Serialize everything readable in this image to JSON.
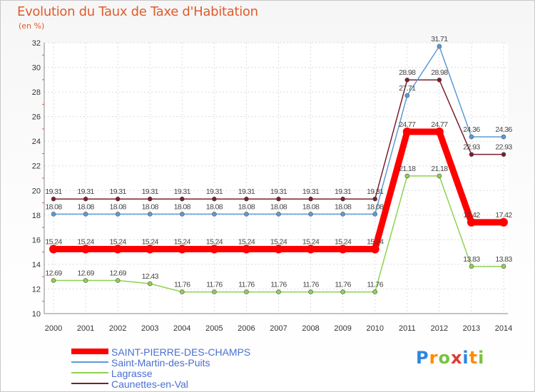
{
  "title": "Evolution du Taux de Taxe d'Habitation",
  "subtitle": "(en %)",
  "brand": {
    "text": "Proxiti",
    "letters": [
      "P",
      "r",
      "o",
      "x",
      "i",
      "t",
      "i"
    ],
    "colors": [
      "#2e86de",
      "#ff8c00",
      "#7bc142",
      "#e03c31",
      "#2e86de",
      "#ff8c00",
      "#7bc142"
    ]
  },
  "chart_data": {
    "type": "line",
    "title": "Evolution du Taux de Taxe d'Habitation",
    "ylabel": "(en %)",
    "categories": [
      "2000",
      "2001",
      "2002",
      "2003",
      "2004",
      "2005",
      "2006",
      "2007",
      "2008",
      "2009",
      "2010",
      "2011",
      "2012",
      "2013",
      "2014"
    ],
    "ylim": [
      10,
      32
    ],
    "yticks": [
      10,
      12,
      14,
      16,
      18,
      20,
      22,
      24,
      26,
      28,
      30,
      32
    ],
    "grid": true,
    "legend_position": "bottom-left",
    "series": [
      {
        "name": "Caunettes-en-Val",
        "color": "#7a1f2b",
        "values": [
          19.31,
          19.31,
          19.31,
          19.31,
          19.31,
          19.31,
          19.31,
          19.31,
          19.31,
          19.31,
          19.31,
          28.98,
          28.98,
          22.93,
          22.93
        ],
        "labels": [
          "19.31",
          "19.31",
          "19.31",
          "19.31",
          "19.31",
          "19.31",
          "19.31",
          "19.31",
          "19.31",
          "19.31",
          "19.31",
          "28.98",
          "28.98",
          "22.93",
          "22.93"
        ]
      },
      {
        "name": "Saint-Martin-des-Puits",
        "color": "#5b9bd5",
        "values": [
          18.08,
          18.08,
          18.08,
          18.08,
          18.08,
          18.08,
          18.08,
          18.08,
          18.08,
          18.08,
          18.08,
          27.71,
          31.71,
          24.36,
          24.36
        ],
        "labels": [
          "18.08",
          "18.08",
          "18.08",
          "18.08",
          "18.08",
          "18.08",
          "18.08",
          "18.08",
          "18.08",
          "18.08",
          "18.08",
          "27.71",
          "31.71",
          "24.36",
          "24.36"
        ]
      },
      {
        "name": "Lagrasse",
        "color": "#8fd14f",
        "values": [
          12.69,
          12.69,
          12.69,
          12.43,
          11.76,
          11.76,
          11.76,
          11.76,
          11.76,
          11.76,
          11.76,
          21.18,
          21.18,
          13.83,
          13.83
        ],
        "labels": [
          "12.69",
          "12.69",
          "12.69",
          "12.43",
          "11.76",
          "11.76",
          "11.76",
          "11.76",
          "11.76",
          "11.76",
          "11.76",
          "21.18",
          "21.18",
          "13.83",
          "13.83"
        ]
      },
      {
        "name": "SAINT-PIERRE-DES-CHAMPS",
        "color": "#ff0000",
        "values": [
          15.24,
          15.24,
          15.24,
          15.24,
          15.24,
          15.24,
          15.24,
          15.24,
          15.24,
          15.24,
          15.24,
          24.77,
          24.77,
          17.42,
          17.42
        ],
        "labels": [
          "15.24",
          "15.24",
          "15.24",
          "15.24",
          "15.24",
          "15.24",
          "15.24",
          "15.24",
          "15.24",
          "15.24",
          "15.24",
          "24.77",
          "24.77",
          "17.42",
          "17.42"
        ]
      }
    ],
    "legend": [
      {
        "name": "SAINT-PIERRE-DES-CHAMPS",
        "color": "#ff0000",
        "bold": true
      },
      {
        "name": "Saint-Martin-des-Puits",
        "color": "#5b9bd5",
        "bold": false
      },
      {
        "name": "Lagrasse",
        "color": "#8fd14f",
        "bold": false
      },
      {
        "name": "Caunettes-en-Val",
        "color": "#7a1f2b",
        "bold": false
      }
    ]
  }
}
